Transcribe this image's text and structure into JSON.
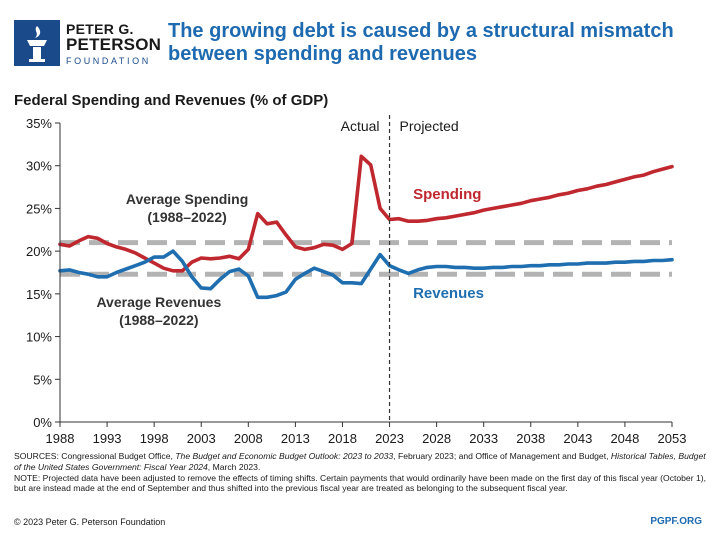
{
  "header": {
    "logo_line1": "PETER G.",
    "logo_line2": "PETERSON",
    "logo_line3": "FOUNDATION",
    "headline": "The growing debt is caused by a structural mismatch between spending and revenues"
  },
  "chart_title": "Federal Spending and Revenues (% of GDP)",
  "chart_data": {
    "type": "line",
    "title": "Federal Spending and Revenues (% of GDP)",
    "xlim": [
      1988,
      2053
    ],
    "ylim": [
      0,
      35
    ],
    "x_ticks": [
      1988,
      1993,
      1998,
      2003,
      2008,
      2013,
      2018,
      2023,
      2028,
      2033,
      2038,
      2043,
      2048,
      2053
    ],
    "y_ticks": [
      0,
      5,
      10,
      15,
      20,
      25,
      30,
      35
    ],
    "y_tick_labels": [
      "0%",
      "5%",
      "10%",
      "15%",
      "20%",
      "25%",
      "30%",
      "35%"
    ],
    "grid": false,
    "divider_year": 2023,
    "divider_labels": {
      "left": "Actual",
      "right": "Projected"
    },
    "averages": [
      {
        "label_line1": "Average Spending",
        "label_line2": "(1988–2022)",
        "value": 21.0
      },
      {
        "label_line1": "Average Revenues",
        "label_line2": "(1988–2022)",
        "value": 17.3
      }
    ],
    "series": [
      {
        "name": "Spending",
        "color": "#c0282f",
        "x": [
          1988,
          1989,
          1990,
          1991,
          1992,
          1993,
          1994,
          1995,
          1996,
          1997,
          1998,
          1999,
          2000,
          2001,
          2002,
          2003,
          2004,
          2005,
          2006,
          2007,
          2008,
          2009,
          2010,
          2011,
          2012,
          2013,
          2014,
          2015,
          2016,
          2017,
          2018,
          2019,
          2020,
          2021,
          2022,
          2023,
          2024,
          2025,
          2026,
          2027,
          2028,
          2029,
          2030,
          2031,
          2032,
          2033,
          2034,
          2035,
          2036,
          2037,
          2038,
          2039,
          2040,
          2041,
          2042,
          2043,
          2044,
          2045,
          2046,
          2047,
          2048,
          2049,
          2050,
          2051,
          2052,
          2053
        ],
        "values": [
          20.8,
          20.6,
          21.2,
          21.7,
          21.5,
          20.9,
          20.5,
          20.2,
          19.8,
          19.2,
          18.6,
          18.0,
          17.7,
          17.7,
          18.7,
          19.2,
          19.1,
          19.2,
          19.4,
          19.1,
          20.2,
          24.4,
          23.2,
          23.4,
          21.9,
          20.5,
          20.2,
          20.4,
          20.8,
          20.7,
          20.2,
          20.9,
          31.1,
          30.1,
          25.0,
          23.7,
          23.8,
          23.5,
          23.5,
          23.6,
          23.8,
          23.9,
          24.1,
          24.3,
          24.5,
          24.8,
          25.0,
          25.2,
          25.4,
          25.6,
          25.9,
          26.1,
          26.3,
          26.6,
          26.8,
          27.1,
          27.3,
          27.6,
          27.8,
          28.1,
          28.4,
          28.7,
          28.9,
          29.3,
          29.6,
          29.9
        ]
      },
      {
        "name": "Revenues",
        "color": "#1f6eb0",
        "x": [
          1988,
          1989,
          1990,
          1991,
          1992,
          1993,
          1994,
          1995,
          1996,
          1997,
          1998,
          1999,
          2000,
          2001,
          2002,
          2003,
          2004,
          2005,
          2006,
          2007,
          2008,
          2009,
          2010,
          2011,
          2012,
          2013,
          2014,
          2015,
          2016,
          2017,
          2018,
          2019,
          2020,
          2021,
          2022,
          2023,
          2024,
          2025,
          2026,
          2027,
          2028,
          2029,
          2030,
          2031,
          2032,
          2033,
          2034,
          2035,
          2036,
          2037,
          2038,
          2039,
          2040,
          2041,
          2042,
          2043,
          2044,
          2045,
          2046,
          2047,
          2048,
          2049,
          2050,
          2051,
          2052,
          2053
        ],
        "values": [
          17.7,
          17.8,
          17.5,
          17.3,
          17.0,
          17.0,
          17.5,
          17.9,
          18.3,
          18.7,
          19.3,
          19.3,
          20.0,
          18.8,
          17.0,
          15.7,
          15.6,
          16.7,
          17.6,
          17.9,
          17.1,
          14.6,
          14.6,
          14.8,
          15.2,
          16.7,
          17.4,
          18.0,
          17.6,
          17.2,
          16.3,
          16.3,
          16.2,
          17.9,
          19.6,
          18.3,
          17.8,
          17.4,
          17.8,
          18.1,
          18.2,
          18.2,
          18.1,
          18.1,
          18.0,
          18.0,
          18.1,
          18.1,
          18.2,
          18.2,
          18.3,
          18.3,
          18.4,
          18.4,
          18.5,
          18.5,
          18.6,
          18.6,
          18.6,
          18.7,
          18.7,
          18.8,
          18.8,
          18.9,
          18.9,
          19.0
        ]
      }
    ]
  },
  "notes": {
    "sources_prefix": "SOURCES: Congressional Budget Office, ",
    "sources_title1": "The Budget and Economic Budget Outlook: 2023 to 2033",
    "sources_mid": ", February 2023; and Office of Management and Budget, ",
    "sources_title2": "Historical Tables, Budget of the United States Government: Fiscal Year 2024",
    "sources_suffix": ", March 2023.",
    "note": "NOTE: Projected data have been adjusted to remove the effects of timing shifts. Certain payments that would ordinarily have been made on the first day of this fiscal year (October 1), but are instead made at the end of September and thus shifted into the previous fiscal year are treated as belonging to the subsequent fiscal year."
  },
  "footer": {
    "copyright": "© 2023 Peter G. Peterson Foundation",
    "site": "PGPF.ORG"
  }
}
